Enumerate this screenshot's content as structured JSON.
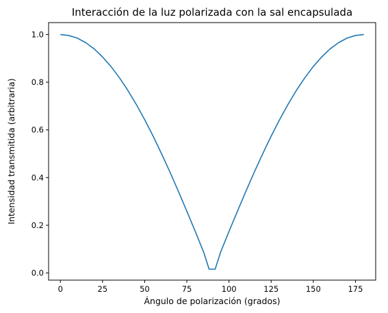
{
  "chart_data": {
    "type": "line",
    "title": "Interacción de la luz polarizada con la sal encapsulada",
    "xlabel": "Ángulo de polarización (grados)",
    "ylabel": "Intensidad transmitida (arbitraria)",
    "xlim": [
      -7,
      187
    ],
    "ylim": [
      -0.03,
      1.05
    ],
    "xticks": [
      0,
      25,
      50,
      75,
      100,
      125,
      150,
      175
    ],
    "xtick_labels": [
      "0",
      "25",
      "50",
      "75",
      "100",
      "125",
      "150",
      "175"
    ],
    "yticks": [
      0.0,
      0.2,
      0.4,
      0.6,
      0.8,
      1.0
    ],
    "ytick_labels": [
      "0.0",
      "0.2",
      "0.4",
      "0.6",
      "0.8",
      "1.0"
    ],
    "grid": false,
    "legend": "none",
    "series": [
      {
        "color": "#1f77b4",
        "x": [
          0,
          5,
          10,
          15,
          20,
          25,
          30,
          35,
          40,
          45,
          50,
          55,
          60,
          65,
          70,
          75,
          80,
          85,
          88.2,
          91.8,
          95,
          100,
          105,
          110,
          115,
          120,
          125,
          130,
          135,
          140,
          145,
          150,
          155,
          160,
          165,
          170,
          175,
          180
        ],
        "y": [
          1.0,
          0.996,
          0.985,
          0.966,
          0.94,
          0.906,
          0.866,
          0.819,
          0.766,
          0.707,
          0.643,
          0.574,
          0.5,
          0.423,
          0.342,
          0.259,
          0.174,
          0.087,
          0.016,
          0.016,
          0.087,
          0.174,
          0.259,
          0.342,
          0.423,
          0.5,
          0.574,
          0.643,
          0.707,
          0.766,
          0.819,
          0.866,
          0.906,
          0.94,
          0.966,
          0.985,
          0.996,
          1.0
        ]
      }
    ]
  }
}
